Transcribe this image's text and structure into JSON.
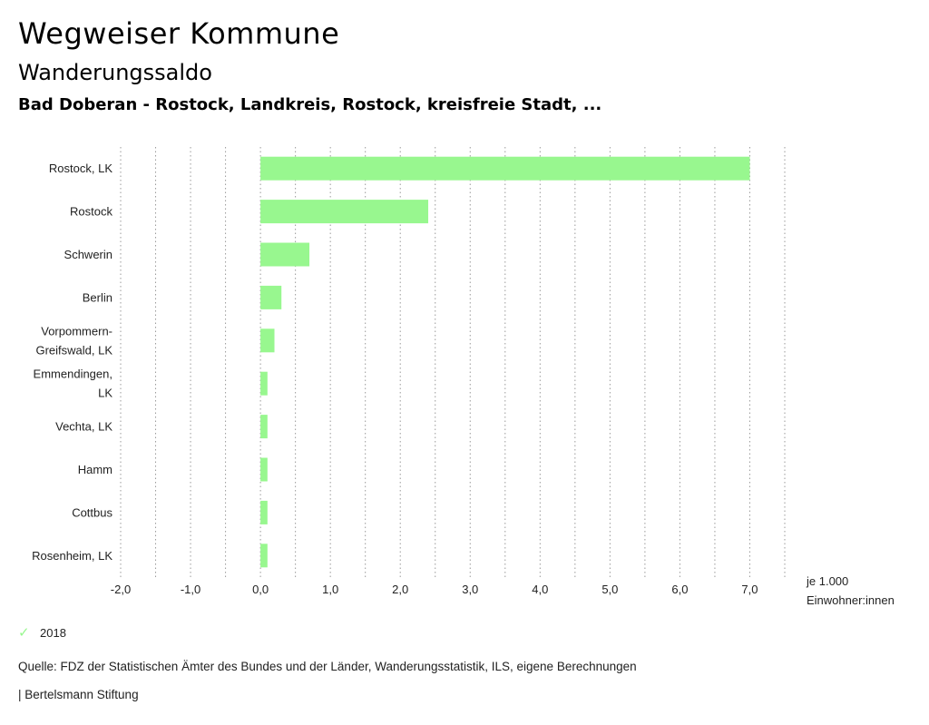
{
  "header": {
    "title": "Wegweiser Kommune",
    "subtitle": "Wanderungssaldo",
    "region": "Bad Doberan - Rostock, Landkreis, Rostock, kreisfreie Stadt, ..."
  },
  "chart_data": {
    "type": "bar",
    "orientation": "horizontal",
    "categories": [
      [
        "Rostock, LK"
      ],
      [
        "Rostock"
      ],
      [
        "Schwerin"
      ],
      [
        "Berlin"
      ],
      [
        "Vorpommern-",
        "Greifswald, LK"
      ],
      [
        "Emmendingen,",
        "LK"
      ],
      [
        "Vechta, LK"
      ],
      [
        "Hamm"
      ],
      [
        "Cottbus"
      ],
      [
        "Rosenheim, LK"
      ]
    ],
    "series": [
      {
        "name": "2018",
        "color": "#98f78f",
        "values": [
          7.0,
          2.4,
          0.7,
          0.3,
          0.2,
          0.1,
          0.1,
          0.1,
          0.1,
          0.1
        ]
      }
    ],
    "xlim": [
      -2.0,
      7.5
    ],
    "xticks": [
      -2.0,
      -1.0,
      0.0,
      1.0,
      2.0,
      3.0,
      4.0,
      5.0,
      6.0,
      7.0
    ],
    "xtick_labels": [
      "-2,0",
      "-1,0",
      "0,0",
      "1,0",
      "2,0",
      "3,0",
      "4,0",
      "5,0",
      "6,0",
      "7,0"
    ],
    "grid": "vertical-dotted",
    "unit_label": [
      "je 1.000",
      "Einwohner:innen"
    ]
  },
  "legend": {
    "label": "2018",
    "icon": "check-icon"
  },
  "footer": {
    "source": "Quelle: FDZ der Statistischen Ämter des Bundes und der Länder, Wanderungsstatistik, ILS, eigene Berechnungen",
    "brand": "| Bertelsmann Stiftung"
  }
}
